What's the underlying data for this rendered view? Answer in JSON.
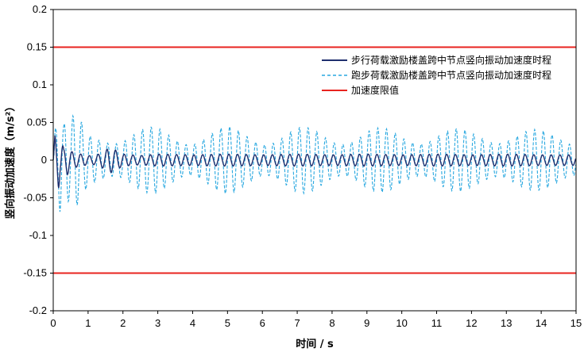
{
  "chart_data": {
    "type": "line",
    "xlabel": "时间 / s",
    "ylabel": "竖向振动加速度（m/s²）",
    "xlim": [
      0,
      15
    ],
    "ylim": [
      -0.2,
      0.2
    ],
    "x_ticks": [
      "0",
      "1",
      "2",
      "3",
      "4",
      "5",
      "6",
      "7",
      "8",
      "9",
      "10",
      "11",
      "12",
      "13",
      "14",
      "15"
    ],
    "y_ticks": [
      "0.2",
      "0.15",
      "0.1",
      "0.05",
      "0",
      "-0.05",
      "-0.1",
      "-0.15",
      "-0.2"
    ],
    "grid": false,
    "legend_position": "top-right",
    "series": [
      {
        "name": "步行荷载激励楼盖跨中节点竖向振动加速度时程",
        "color": "#1f2f6e",
        "style": "solid",
        "x": [
          0,
          0.05,
          0.1,
          0.15,
          0.2,
          0.25,
          0.3,
          0.4,
          0.5,
          0.6,
          0.8,
          1.0,
          1.2,
          1.5,
          1.6,
          2.0,
          2.5,
          3,
          4,
          5,
          6,
          7,
          8,
          9,
          10,
          11,
          12,
          13,
          14,
          15
        ],
        "y": [
          0,
          0.035,
          -0.03,
          0.04,
          -0.02,
          0.025,
          -0.015,
          0.02,
          -0.012,
          0.01,
          -0.008,
          0.006,
          -0.006,
          0.012,
          0.018,
          0.008,
          -0.006,
          0.008,
          -0.007,
          0.008,
          -0.007,
          0.008,
          -0.007,
          0.008,
          -0.007,
          0.008,
          -0.007,
          0.008,
          -0.007,
          0.007
        ]
      },
      {
        "name": "跑步荷载激励楼盖跨中节点竖向振动加速度时程",
        "color": "#29a8e0",
        "style": "dashed",
        "x": [
          0,
          0.05,
          0.1,
          0.15,
          0.2,
          0.3,
          0.4,
          0.5,
          0.6,
          0.8,
          1.0,
          1.5,
          2,
          3,
          4,
          5,
          6,
          7,
          8,
          9,
          10,
          11,
          12,
          13,
          14,
          15
        ],
        "y": [
          0,
          0.05,
          -0.06,
          0.06,
          -0.082,
          0.05,
          -0.06,
          0.048,
          -0.065,
          0.055,
          -0.04,
          0.045,
          -0.04,
          0.045,
          -0.04,
          0.045,
          -0.04,
          0.045,
          -0.04,
          0.045,
          -0.04,
          0.045,
          -0.04,
          0.045,
          -0.04,
          0.04
        ]
      },
      {
        "name": "加速度限值",
        "color": "#e8231f",
        "style": "solid",
        "x": [
          0,
          15
        ],
        "y": [
          0.15,
          0.15
        ],
        "y_lower": [
          -0.15,
          -0.15
        ]
      }
    ]
  }
}
